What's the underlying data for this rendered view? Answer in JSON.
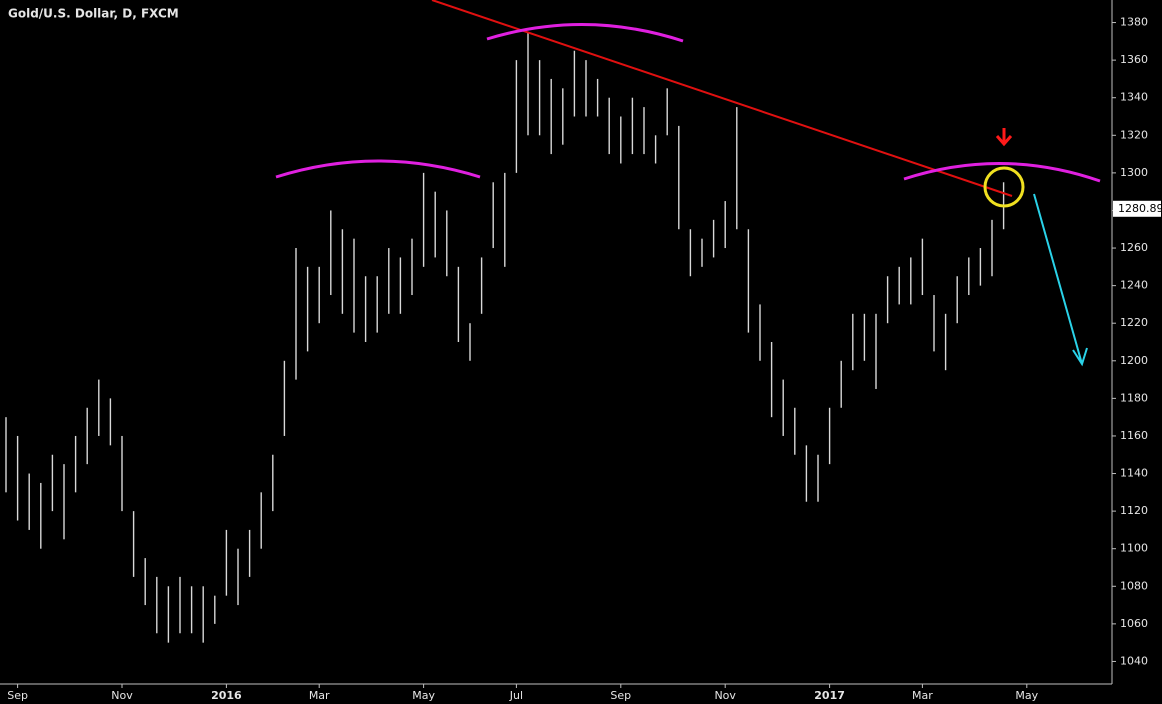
{
  "chart_data": {
    "type": "hilo",
    "title": "Gold/U.S. Dollar, D, FXCM",
    "color": "#d9d9d9",
    "categories": [
      null,
      "Sep",
      null,
      null,
      null,
      null,
      null,
      null,
      null,
      null,
      "Nov",
      null,
      null,
      null,
      null,
      null,
      null,
      null,
      null,
      "2016",
      null,
      null,
      null,
      null,
      null,
      null,
      null,
      "Mar",
      null,
      null,
      null,
      null,
      null,
      null,
      null,
      null,
      "May",
      null,
      null,
      null,
      null,
      null,
      null,
      null,
      "Jul",
      null,
      null,
      null,
      null,
      null,
      null,
      null,
      null,
      "Sep",
      null,
      null,
      null,
      null,
      null,
      null,
      null,
      null,
      "Nov",
      null,
      null,
      null,
      null,
      null,
      null,
      null,
      null,
      "2017",
      null,
      null,
      null,
      null,
      null,
      null,
      null,
      "Mar",
      null,
      null,
      null,
      null,
      null,
      null,
      null,
      null,
      "May",
      null,
      null,
      null
    ],
    "high": [
      1170,
      1160,
      1140,
      1135,
      1150,
      1145,
      1160,
      1175,
      1190,
      1180,
      1160,
      1120,
      1095,
      1085,
      1080,
      1085,
      1080,
      1080,
      1075,
      1110,
      1100,
      1110,
      1130,
      1150,
      1200,
      1260,
      1250,
      1250,
      1280,
      1270,
      1265,
      1245,
      1245,
      1260,
      1255,
      1265,
      1300,
      1290,
      1280,
      1250,
      1220,
      1255,
      1295,
      1300,
      1360,
      1375,
      1360,
      1350,
      1345,
      1365,
      1360,
      1350,
      1340,
      1330,
      1340,
      1335,
      1320,
      1345,
      1325,
      1270,
      1265,
      1275,
      1285,
      1335,
      1270,
      1230,
      1210,
      1190,
      1175,
      1155,
      1150,
      1175,
      1200,
      1225,
      1225,
      1225,
      1245,
      1250,
      1255,
      1265,
      1235,
      1225,
      1245,
      1255,
      1260,
      1275,
      1295,
      null,
      null,
      null,
      null,
      null
    ],
    "low": [
      1130,
      1115,
      1110,
      1100,
      1120,
      1105,
      1130,
      1145,
      1160,
      1155,
      1120,
      1085,
      1070,
      1055,
      1050,
      1055,
      1055,
      1050,
      1060,
      1075,
      1070,
      1085,
      1100,
      1120,
      1160,
      1190,
      1205,
      1220,
      1235,
      1225,
      1215,
      1210,
      1215,
      1225,
      1225,
      1235,
      1250,
      1255,
      1245,
      1210,
      1200,
      1225,
      1260,
      1250,
      1300,
      1320,
      1320,
      1310,
      1315,
      1330,
      1330,
      1330,
      1310,
      1305,
      1310,
      1310,
      1305,
      1320,
      1270,
      1245,
      1250,
      1255,
      1260,
      1270,
      1215,
      1200,
      1170,
      1160,
      1150,
      1125,
      1125,
      1145,
      1175,
      1195,
      1200,
      1185,
      1220,
      1230,
      1230,
      1235,
      1205,
      1195,
      1220,
      1235,
      1240,
      1245,
      1270,
      null,
      null,
      null,
      null,
      null
    ],
    "last_price": 1280.89,
    "ylim": [
      1028,
      1392
    ],
    "yticks": [
      1040,
      1060,
      1080,
      1100,
      1120,
      1140,
      1160,
      1180,
      1200,
      1220,
      1240,
      1260,
      1280,
      1300,
      1320,
      1340,
      1360,
      1380
    ]
  }
}
